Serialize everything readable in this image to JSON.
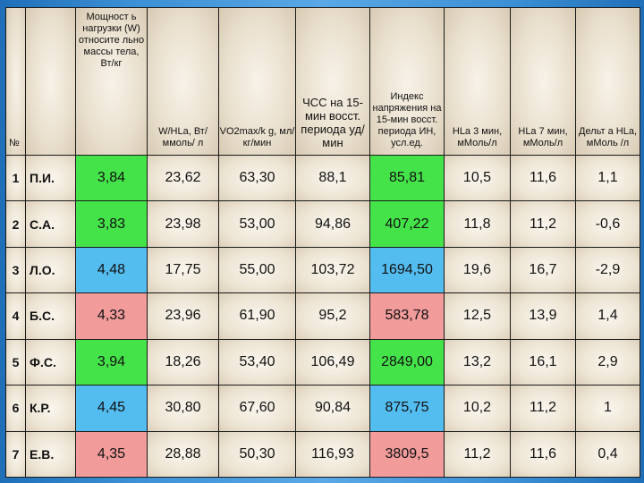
{
  "headers": {
    "num": "№",
    "name": "",
    "load": "Мощност ь нагрузки (W) относите льно массы тела, Вт/кг",
    "whla": "W/HLa, Вт/ммоль/ л",
    "vo2": "VO2max/k g, мл/кг/мин",
    "hr": "ЧСС на 15-мин восст. периода уд/мин",
    "index": "Индекс напряжения на 15-мин восст. периода ИН, усл.ед.",
    "hla3": "HLa 3 мин, мМоль/л",
    "hla7": "HLa 7 мин, мМоль/л",
    "delta": "Дельт а HLa, мМоль /л"
  },
  "rows": [
    {
      "idx": "1",
      "name": "П.И.",
      "load": "3,84",
      "whla": "23,62",
      "vo2": "63,30",
      "hr": "88,1",
      "index": "85,81",
      "hla3": "10,5",
      "hla7": "11,6",
      "delta": "1,1",
      "load_color": "green",
      "index_color": "green"
    },
    {
      "idx": "2",
      "name": "С.А.",
      "load": "3,83",
      "whla": "23,98",
      "vo2": "53,00",
      "hr": "94,86",
      "index": "407,22",
      "hla3": "11,8",
      "hla7": "11,2",
      "delta": "-0,6",
      "load_color": "green",
      "index_color": "green"
    },
    {
      "idx": "3",
      "name": "Л.О.",
      "load": "4,48",
      "whla": "17,75",
      "vo2": "55,00",
      "hr": "103,72",
      "index": "1694,50",
      "hla3": "19,6",
      "hla7": "16,7",
      "delta": "-2,9",
      "load_color": "blue",
      "index_color": "blue"
    },
    {
      "idx": "4",
      "name": "Б.С.",
      "load": "4,33",
      "whla": "23,96",
      "vo2": "61,90",
      "hr": "95,2",
      "index": "583,78",
      "hla3": "12,5",
      "hla7": "13,9",
      "delta": "1,4",
      "load_color": "pink",
      "index_color": "pink"
    },
    {
      "idx": "5",
      "name": "Ф.С.",
      "load": "3,94",
      "whla": "18,26",
      "vo2": "53,40",
      "hr": "106,49",
      "index": "2849,00",
      "hla3": "13,2",
      "hla7": "16,1",
      "delta": "2,9",
      "load_color": "green",
      "index_color": "green"
    },
    {
      "idx": "6",
      "name": "К.Р.",
      "load": "4,45",
      "whla": "30,80",
      "vo2": "67,60",
      "hr": "90,84",
      "index": "875,75",
      "hla3": "10,2",
      "hla7": "11,2",
      "delta": "1",
      "load_color": "blue",
      "index_color": "blue"
    },
    {
      "idx": "7",
      "name": "Е.В.",
      "load": "4,35",
      "whla": "28,88",
      "vo2": "50,30",
      "hr": "116,93",
      "index": "3809,5",
      "hla3": "11,2",
      "hla7": "11,6",
      "delta": "0,4",
      "load_color": "pink",
      "index_color": "pink"
    }
  ],
  "colors": {
    "green": "#45e34a",
    "blue": "#54bdf0",
    "pink": "#f19b9b"
  }
}
